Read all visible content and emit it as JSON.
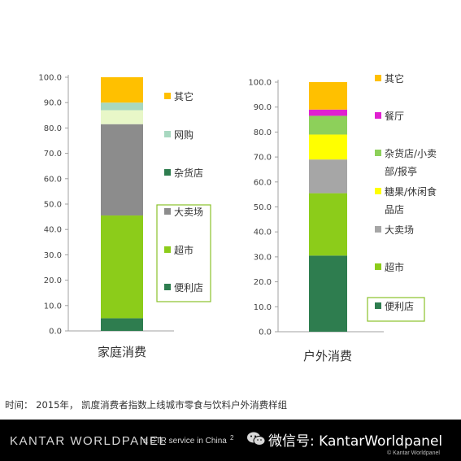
{
  "chart_data": [
    {
      "type": "bar",
      "stacked": true,
      "categories": [
        "家庭消费"
      ],
      "ylim": [
        0,
        100
      ],
      "yticks": [
        "0.0",
        "10.0",
        "20.0",
        "30.0",
        "40.0",
        "50.0",
        "60.0",
        "70.0",
        "80.0",
        "90.0",
        "100.0"
      ],
      "series": [
        {
          "name": "便利店",
          "values": [
            5
          ],
          "color": "#2e7d4f"
        },
        {
          "name": "超市",
          "values": [
            40.5
          ],
          "color": "#8ccc1a"
        },
        {
          "name": "大卖场",
          "values": [
            36
          ],
          "color": "#8c8c8c"
        },
        {
          "name": "杂货店",
          "values": [
            0
          ],
          "color": "#2e7d4f"
        },
        {
          "name": "网购",
          "values": [
            5.5
          ],
          "color": "#e8f7c8"
        },
        {
          "name": "",
          "values": [
            3
          ],
          "color": "#a8d8c0"
        },
        {
          "name": "其它",
          "values": [
            10
          ],
          "color": "#ffc000"
        }
      ],
      "legend": [
        "其它",
        "网购",
        "杂货店",
        "大卖场",
        "超市",
        "便利店"
      ]
    },
    {
      "type": "bar",
      "stacked": true,
      "categories": [
        "户外消费"
      ],
      "ylim": [
        0,
        100
      ],
      "yticks": [
        "0.0",
        "10.0",
        "20.0",
        "30.0",
        "40.0",
        "50.0",
        "60.0",
        "70.0",
        "80.0",
        "90.0",
        "100.0"
      ],
      "series": [
        {
          "name": "便利店",
          "values": [
            30.5
          ],
          "color": "#2e7d4f"
        },
        {
          "name": "超市",
          "values": [
            25
          ],
          "color": "#8ccc1a"
        },
        {
          "name": "大卖场",
          "values": [
            13.5
          ],
          "color": "#a6a6a6"
        },
        {
          "name": "糖果/休闲食品店",
          "values": [
            10
          ],
          "color": "#ffff00"
        },
        {
          "name": "杂货店/小卖部/报亭",
          "values": [
            7.5
          ],
          "color": "#8dd05a"
        },
        {
          "name": "餐厅",
          "values": [
            2.5
          ],
          "color": "#e020d0"
        },
        {
          "name": "其它",
          "values": [
            11
          ],
          "color": "#ffc000"
        }
      ],
      "legend": [
        "其它",
        "餐厅",
        "杂货店/小卖部/报亭",
        "糖果/休闲食品店",
        "大卖场",
        "超市",
        "便利店"
      ]
    }
  ],
  "legend_colors": {
    "left": [
      "#ffc000",
      "#a8d8c0",
      "#2e7d4f",
      "#8c8c8c",
      "#8ccc1a",
      "#2e7d4f"
    ],
    "right": [
      "#ffc000",
      "#e020d0",
      "#8dd05a",
      "#ffff00",
      "#a6a6a6",
      "#8ccc1a",
      "#2e7d4f"
    ]
  },
  "legend_lines": {
    "left": [
      [
        "其它"
      ],
      [
        "网购"
      ],
      [
        "杂货店"
      ],
      [
        "大卖场"
      ],
      [
        "超市"
      ],
      [
        "便利店"
      ]
    ],
    "right": [
      [
        "其它"
      ],
      [
        "餐厅"
      ],
      [
        "杂货店/小卖",
        "部/报亭"
      ],
      [
        "糖果/休闲食",
        "品店"
      ],
      [
        "大卖场"
      ],
      [
        "超市"
      ],
      [
        "便利店"
      ]
    ]
  },
  "footnote": "时间： 2015年， 凯度消费者指数上线城市零食与饮料户外消费样组",
  "footer": {
    "brand": "KANTAR WORLDPANEL",
    "tagline": "a CTR service in China",
    "page": "2",
    "wechat_label": "微信号: KantarWorldpanel",
    "copyright": "© Kantar Worldpanel",
    "wechat_icon": "wechat-icon"
  }
}
